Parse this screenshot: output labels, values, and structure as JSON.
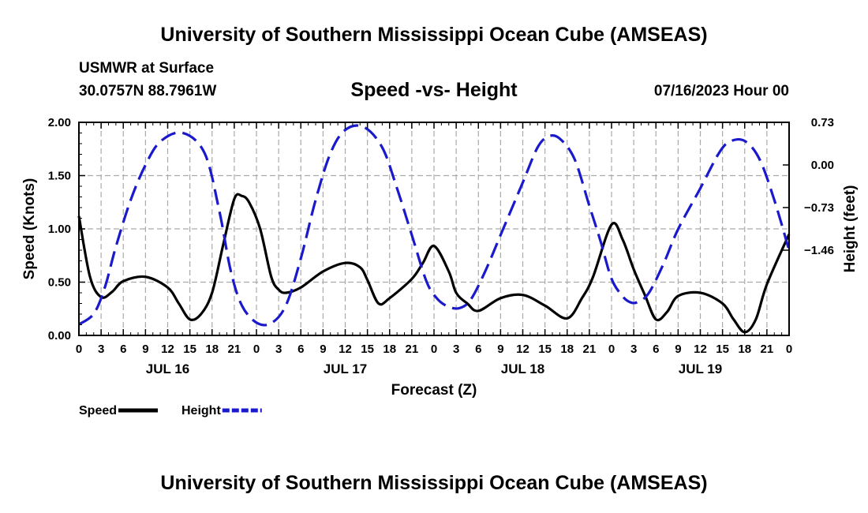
{
  "header": {
    "title": "University of Southern Mississippi Ocean Cube (AMSEAS)",
    "station": "USMWR at Surface",
    "coords": "30.0757N  88.7961W",
    "subtitle": "Speed -vs- Height",
    "datetime": "07/16/2023 Hour 00",
    "footer_title": "University of Southern Mississippi Ocean Cube (AMSEAS)"
  },
  "chart_data": {
    "type": "line",
    "title": "Speed -vs- Height",
    "xlabel": "Forecast (Z)",
    "ylabel": "Speed (Knots)",
    "y2label": "Height (feet)",
    "xlim": [
      0,
      96
    ],
    "ylim": [
      0,
      2.0
    ],
    "y2lim": [
      -2.92,
      0.73
    ],
    "yticks": [
      "0.00",
      "0.50",
      "1.00",
      "1.50",
      "2.00"
    ],
    "y2ticks": [
      "0.73",
      "0.00",
      "−0.73",
      "−1.46"
    ],
    "y2tick_values": [
      0.73,
      0.0,
      -0.73,
      -1.46
    ],
    "xtick_labels": [
      "0",
      "3",
      "6",
      "9",
      "12",
      "15",
      "18",
      "21",
      "0",
      "3",
      "6",
      "9",
      "12",
      "15",
      "18",
      "21",
      "0",
      "3",
      "6",
      "9",
      "12",
      "15",
      "18",
      "21",
      "0",
      "3",
      "6",
      "9",
      "12",
      "15",
      "18",
      "21",
      "0"
    ],
    "day_labels": [
      {
        "label": "JUL 16",
        "hour": 12
      },
      {
        "label": "JUL 17",
        "hour": 36
      },
      {
        "label": "JUL 18",
        "hour": 60
      },
      {
        "label": "JUL 19",
        "hour": 84
      }
    ],
    "grid": true,
    "series": [
      {
        "name": "Speed",
        "axis": "left",
        "color": "#000000",
        "style": "solid",
        "x": [
          0,
          1.5,
          3,
          4.5,
          6,
          9,
          12,
          13.5,
          15,
          16.5,
          18,
          19.5,
          21,
          22,
          23,
          24.5,
          26,
          27,
          28,
          30,
          33,
          36,
          38,
          39,
          40.5,
          42,
          45,
          46.5,
          48,
          50,
          51,
          52.5,
          54,
          57,
          60,
          63,
          66,
          68,
          69.5,
          72,
          73.5,
          75,
          76.5,
          78,
          79.5,
          81,
          84,
          87,
          88.5,
          90,
          91.5,
          93,
          96
        ],
        "values": [
          1.12,
          0.55,
          0.36,
          0.41,
          0.51,
          0.55,
          0.45,
          0.3,
          0.15,
          0.2,
          0.4,
          0.85,
          1.28,
          1.31,
          1.25,
          1.0,
          0.55,
          0.43,
          0.4,
          0.45,
          0.6,
          0.68,
          0.64,
          0.52,
          0.3,
          0.35,
          0.53,
          0.68,
          0.84,
          0.6,
          0.4,
          0.3,
          0.23,
          0.35,
          0.38,
          0.28,
          0.16,
          0.35,
          0.55,
          1.04,
          0.9,
          0.62,
          0.38,
          0.15,
          0.22,
          0.37,
          0.4,
          0.3,
          0.15,
          0.03,
          0.15,
          0.48,
          0.95
        ]
      },
      {
        "name": "Height",
        "axis": "right",
        "color": "#1a1acc",
        "style": "dashed",
        "x": [
          0,
          2,
          3.5,
          5,
          7,
          9,
          11,
          14,
          17,
          19,
          20.5,
          22,
          24,
          26,
          28,
          30,
          32,
          34,
          36,
          38.5,
          41,
          43,
          45,
          47,
          48.5,
          50,
          51.5,
          53,
          55,
          57,
          60,
          62,
          63.5,
          65,
          67,
          69,
          70.5,
          72,
          73.5,
          74.5,
          75.5,
          77,
          79,
          81,
          84,
          86.5,
          88,
          90,
          92,
          94,
          96
        ],
        "values": [
          -2.73,
          -2.55,
          -2.1,
          -1.4,
          -0.6,
          0.0,
          0.4,
          0.55,
          0.2,
          -0.8,
          -1.8,
          -2.4,
          -2.7,
          -2.71,
          -2.4,
          -1.6,
          -0.6,
          0.2,
          0.6,
          0.65,
          0.3,
          -0.4,
          -1.2,
          -2.0,
          -2.3,
          -2.43,
          -2.45,
          -2.3,
          -1.8,
          -1.2,
          -0.3,
          0.3,
          0.49,
          0.45,
          0.1,
          -0.7,
          -1.3,
          -1.95,
          -2.25,
          -2.35,
          -2.35,
          -2.2,
          -1.7,
          -1.1,
          -0.4,
          0.2,
          0.4,
          0.41,
          0.1,
          -0.6,
          -1.46
        ]
      }
    ],
    "legend": [
      {
        "label": "Speed",
        "color": "#000000",
        "style": "solid"
      },
      {
        "label": "Height",
        "color": "#1a1acc",
        "style": "dashed"
      }
    ],
    "legend_position": "bottom-left"
  }
}
